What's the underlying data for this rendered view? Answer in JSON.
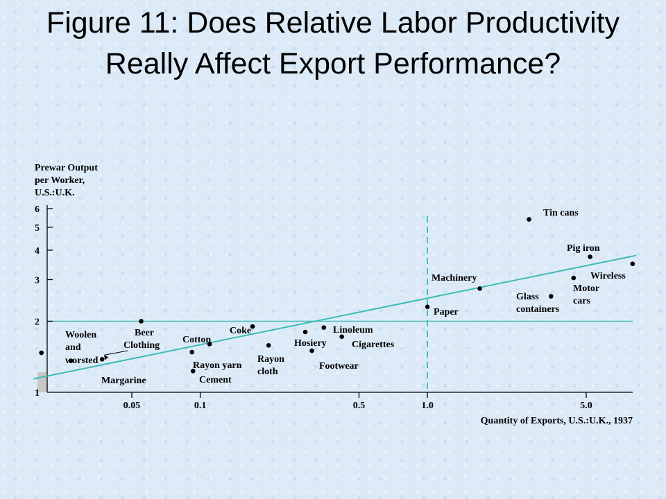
{
  "slide": {
    "title": "Figure 11: Does Relative Labor Productivity Really Affect Export Performance?"
  },
  "chart_data": {
    "type": "scatter",
    "title": "",
    "ylabel_lines": [
      "Prewar Output",
      "per Worker,",
      "U.S.:U.K."
    ],
    "xlabel": "Quantity of Exports, U.S.:U.K., 1937",
    "x_scale": "log",
    "y_scale": "log",
    "x_ticks": [
      {
        "value": 0.05,
        "label": "0.05"
      },
      {
        "value": 0.1,
        "label": "0.1"
      },
      {
        "value": 0.5,
        "label": "0.5"
      },
      {
        "value": 1.0,
        "label": "1.0"
      },
      {
        "value": 5.0,
        "label": "5.0"
      }
    ],
    "y_ticks": [
      {
        "value": 1,
        "label": "1"
      },
      {
        "value": 2,
        "label": "2"
      },
      {
        "value": 3,
        "label": "3"
      },
      {
        "value": 4,
        "label": "4"
      },
      {
        "value": 5,
        "label": "5"
      },
      {
        "value": 6,
        "label": "6"
      }
    ],
    "reference_lines": {
      "x": 1.0,
      "y": 2.0
    },
    "trend_line": {
      "from": [
        0.0185,
        1.14
      ],
      "to": [
        8.3,
        3.8
      ]
    },
    "points": [
      {
        "label": "Tin cans",
        "x": 2.8,
        "y": 5.4
      },
      {
        "label": "Pig iron",
        "x": 5.2,
        "y": 3.75
      },
      {
        "label": "Wireless",
        "x": 8.0,
        "y": 3.5
      },
      {
        "label": "Machinery",
        "x": 1.7,
        "y": 2.75
      },
      {
        "label": "Motor cars",
        "x": 4.4,
        "y": 3.05
      },
      {
        "label": "Glass containers",
        "x": 3.5,
        "y": 2.55
      },
      {
        "label": "Paper",
        "x": 1.0,
        "y": 2.3
      },
      {
        "label": "Beer",
        "x": 0.055,
        "y": 2.0
      },
      {
        "label": "Coke",
        "x": 0.17,
        "y": 1.9
      },
      {
        "label": "Linoleum",
        "x": 0.35,
        "y": 1.88
      },
      {
        "label": "Hosiery",
        "x": 0.29,
        "y": 1.8
      },
      {
        "label": "Cigarettes",
        "x": 0.42,
        "y": 1.72
      },
      {
        "label": "Cotton",
        "x": 0.11,
        "y": 1.6
      },
      {
        "label": "Rayon cloth",
        "x": 0.2,
        "y": 1.58
      },
      {
        "label": "Footwear",
        "x": 0.31,
        "y": 1.5
      },
      {
        "label": "Woolen and worsted",
        "x": 0.02,
        "y": 1.47
      },
      {
        "label": "Rayon yarn",
        "x": 0.092,
        "y": 1.48
      },
      {
        "label": "Clothing",
        "x": 0.037,
        "y": 1.38
      },
      {
        "label": "Margarine",
        "x": 0.027,
        "y": 1.36
      },
      {
        "label": "Cement",
        "x": 0.093,
        "y": 1.23
      }
    ],
    "point_labels": [
      {
        "text": "Tin cans",
        "target": "Tin cans"
      },
      {
        "text": "Pig iron",
        "target": "Pig iron"
      },
      {
        "text": "Wireless",
        "target": "Wireless"
      },
      {
        "text": "Machinery",
        "target": "Machinery"
      },
      {
        "text": "Glass",
        "target": "Glass containers"
      },
      {
        "text": "containers",
        "target": "Glass containers"
      },
      {
        "text": "Motor",
        "target": "Motor cars"
      },
      {
        "text": "cars",
        "target": "Motor cars"
      },
      {
        "text": "Paper",
        "target": "Paper"
      },
      {
        "text": "Beer",
        "target": "Beer"
      },
      {
        "text": "Clothing",
        "target": "Clothing"
      },
      {
        "text": "Coke",
        "target": "Coke"
      },
      {
        "text": "Linoleum",
        "target": "Linoleum"
      },
      {
        "text": "Hosiery",
        "target": "Hosiery"
      },
      {
        "text": "Cigarettes",
        "target": "Cigarettes"
      },
      {
        "text": "Cotton",
        "target": "Cotton"
      },
      {
        "text": "Rayon yarn",
        "target": "Rayon yarn"
      },
      {
        "text": "Rayon",
        "target": "Rayon cloth"
      },
      {
        "text": "cloth",
        "target": "Rayon cloth"
      },
      {
        "text": "Footwear",
        "target": "Footwear"
      },
      {
        "text": "Woolen",
        "target": "Woolen and worsted"
      },
      {
        "text": "and",
        "target": "Woolen and worsted"
      },
      {
        "text": "worsted",
        "target": "Woolen and worsted"
      },
      {
        "text": "Margarine",
        "target": "Margarine"
      },
      {
        "text": "Cement",
        "target": "Cement"
      }
    ],
    "colors": {
      "points": "#000000",
      "axes": "#000000",
      "trend_line": "#3cbcb4",
      "reference_lines": "#3cbcb4",
      "axis_marker": "#c8c8c8"
    }
  }
}
